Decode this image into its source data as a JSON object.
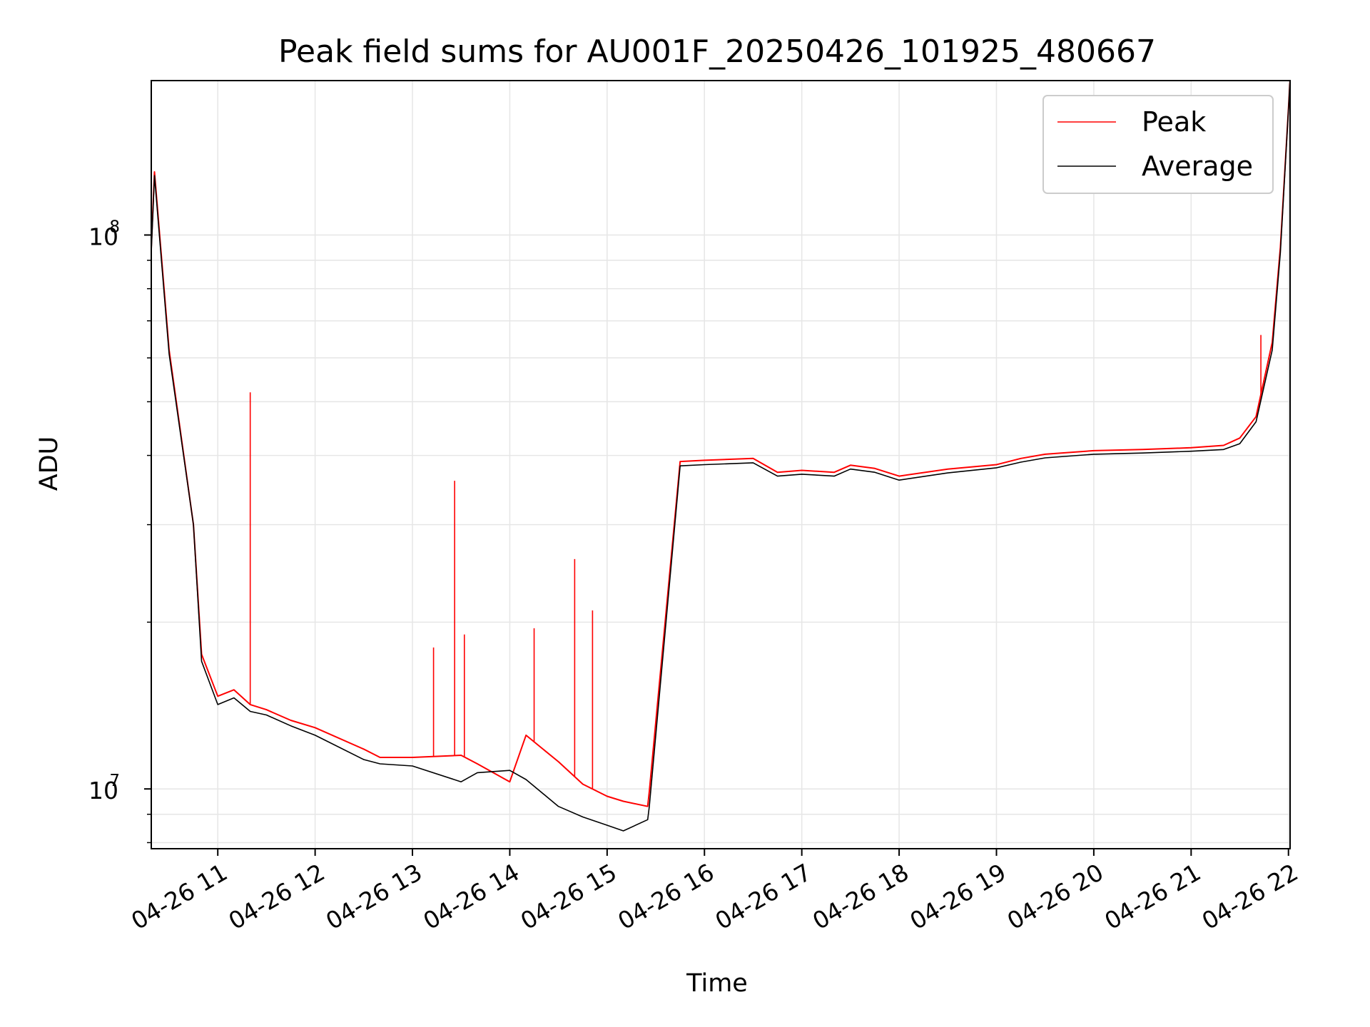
{
  "chart_data": {
    "type": "line",
    "title": "Peak field sums for AU001F_20250426_101925_480667",
    "xlabel": "Time",
    "ylabel": "ADU",
    "y_scale": "log",
    "ylim": [
      7800000,
      190000000
    ],
    "xlim": [
      "2025-04-26 10:19",
      "2025-04-26 22:01"
    ],
    "x_ticks": [
      "04-26 11",
      "04-26 12",
      "04-26 13",
      "04-26 14",
      "04-26 15",
      "04-26 16",
      "04-26 17",
      "04-26 18",
      "04-26 19",
      "04-26 20",
      "04-26 21",
      "04-26 22"
    ],
    "y_ticks": [
      {
        "value": 10000000,
        "base": "10",
        "exp": "7"
      },
      {
        "value": 100000000,
        "base": "10",
        "exp": "8"
      }
    ],
    "grid": true,
    "legend_position": "upper-right",
    "series": [
      {
        "name": "Peak",
        "color": "#ff0000",
        "x": [
          "2025-04-26 10:19",
          "2025-04-26 10:21",
          "2025-04-26 10:30",
          "2025-04-26 10:45",
          "2025-04-26 10:50",
          "2025-04-26 11:00",
          "2025-04-26 11:10",
          "2025-04-26 11:20",
          "2025-04-26 11:30",
          "2025-04-26 11:45",
          "2025-04-26 12:00",
          "2025-04-26 12:30",
          "2025-04-26 12:40",
          "2025-04-26 13:00",
          "2025-04-26 13:30",
          "2025-04-26 13:40",
          "2025-04-26 14:00",
          "2025-04-26 14:10",
          "2025-04-26 14:30",
          "2025-04-26 14:45",
          "2025-04-26 15:00",
          "2025-04-26 15:10",
          "2025-04-26 15:25",
          "2025-04-26 15:26",
          "2025-04-26 15:45",
          "2025-04-26 16:00",
          "2025-04-26 16:30",
          "2025-04-26 16:45",
          "2025-04-26 17:00",
          "2025-04-26 17:20",
          "2025-04-26 17:30",
          "2025-04-26 17:45",
          "2025-04-26 18:00",
          "2025-04-26 18:30",
          "2025-04-26 19:00",
          "2025-04-26 19:15",
          "2025-04-26 19:30",
          "2025-04-26 20:00",
          "2025-04-26 20:30",
          "2025-04-26 21:00",
          "2025-04-26 21:20",
          "2025-04-26 21:30",
          "2025-04-26 21:40",
          "2025-04-26 21:50",
          "2025-04-26 21:55",
          "2025-04-26 22:01"
        ],
        "y": [
          95000000,
          130000000,
          62000000,
          30000000,
          17500000,
          14700000,
          15100000,
          14200000,
          13900000,
          13300000,
          12900000,
          11800000,
          11400000,
          11400000,
          11500000,
          11100000,
          10300000,
          12500000,
          11200000,
          10200000,
          9700000,
          9500000,
          9300000,
          9900000,
          39000000,
          39200000,
          39500000,
          37300000,
          37600000,
          37300000,
          38400000,
          37900000,
          36700000,
          37800000,
          38500000,
          39500000,
          40200000,
          40800000,
          41000000,
          41300000,
          41700000,
          43000000,
          47000000,
          64000000,
          95000000,
          190000000
        ]
      },
      {
        "name": "Average",
        "color": "#000000",
        "x": [
          "2025-04-26 10:19",
          "2025-04-26 10:21",
          "2025-04-26 10:30",
          "2025-04-26 10:45",
          "2025-04-26 10:50",
          "2025-04-26 11:00",
          "2025-04-26 11:10",
          "2025-04-26 11:20",
          "2025-04-26 11:30",
          "2025-04-26 11:45",
          "2025-04-26 12:00",
          "2025-04-26 12:30",
          "2025-04-26 12:40",
          "2025-04-26 13:00",
          "2025-04-26 13:30",
          "2025-04-26 13:40",
          "2025-04-26 14:00",
          "2025-04-26 14:10",
          "2025-04-26 14:30",
          "2025-04-26 14:45",
          "2025-04-26 15:00",
          "2025-04-26 15:10",
          "2025-04-26 15:25",
          "2025-04-26 15:26",
          "2025-04-26 15:45",
          "2025-04-26 16:00",
          "2025-04-26 16:30",
          "2025-04-26 16:45",
          "2025-04-26 17:00",
          "2025-04-26 17:20",
          "2025-04-26 17:30",
          "2025-04-26 17:45",
          "2025-04-26 18:00",
          "2025-04-26 18:30",
          "2025-04-26 19:00",
          "2025-04-26 19:15",
          "2025-04-26 19:30",
          "2025-04-26 20:00",
          "2025-04-26 20:30",
          "2025-04-26 21:00",
          "2025-04-26 21:20",
          "2025-04-26 21:30",
          "2025-04-26 21:40",
          "2025-04-26 21:50",
          "2025-04-26 21:55",
          "2025-04-26 22:01"
        ],
        "y": [
          93000000,
          128000000,
          61000000,
          30000000,
          17000000,
          14200000,
          14600000,
          13800000,
          13600000,
          13000000,
          12500000,
          11300000,
          11100000,
          11000000,
          10300000,
          10700000,
          10800000,
          10400000,
          9300000,
          8900000,
          8600000,
          8400000,
          8800000,
          9300000,
          38300000,
          38500000,
          38800000,
          36700000,
          37000000,
          36700000,
          37800000,
          37300000,
          36100000,
          37200000,
          38000000,
          38900000,
          39600000,
          40200000,
          40400000,
          40700000,
          41000000,
          42000000,
          46000000,
          62000000,
          93000000,
          190000000
        ]
      }
    ],
    "spikes": [
      {
        "series": "Peak",
        "x": "2025-04-26 11:20",
        "y": 52000000
      },
      {
        "series": "Peak",
        "x": "2025-04-26 13:13",
        "y": 18000000
      },
      {
        "series": "Peak",
        "x": "2025-04-26 13:26",
        "y": 36000000
      },
      {
        "series": "Peak",
        "x": "2025-04-26 13:32",
        "y": 19000000
      },
      {
        "series": "Peak",
        "x": "2025-04-26 14:15",
        "y": 19500000
      },
      {
        "series": "Peak",
        "x": "2025-04-26 14:40",
        "y": 26000000
      },
      {
        "series": "Peak",
        "x": "2025-04-26 14:51",
        "y": 21000000
      },
      {
        "series": "Peak",
        "x": "2025-04-26 21:43",
        "y": 66000000
      }
    ]
  }
}
